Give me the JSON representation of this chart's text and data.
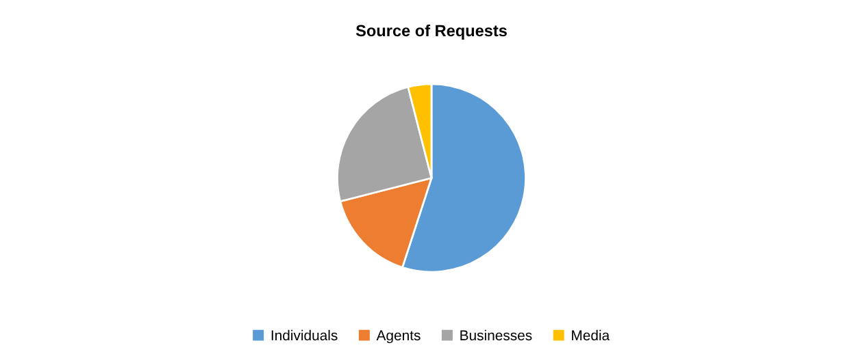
{
  "chart_data": {
    "type": "pie",
    "title": "Source of Requests",
    "categories": [
      "Individuals",
      "Agents",
      "Businesses",
      "Media"
    ],
    "values": [
      55,
      16,
      25,
      4
    ],
    "colors": [
      "#5b9bd5",
      "#ed7d31",
      "#a5a5a5",
      "#ffc000"
    ],
    "legend": "bottom"
  }
}
